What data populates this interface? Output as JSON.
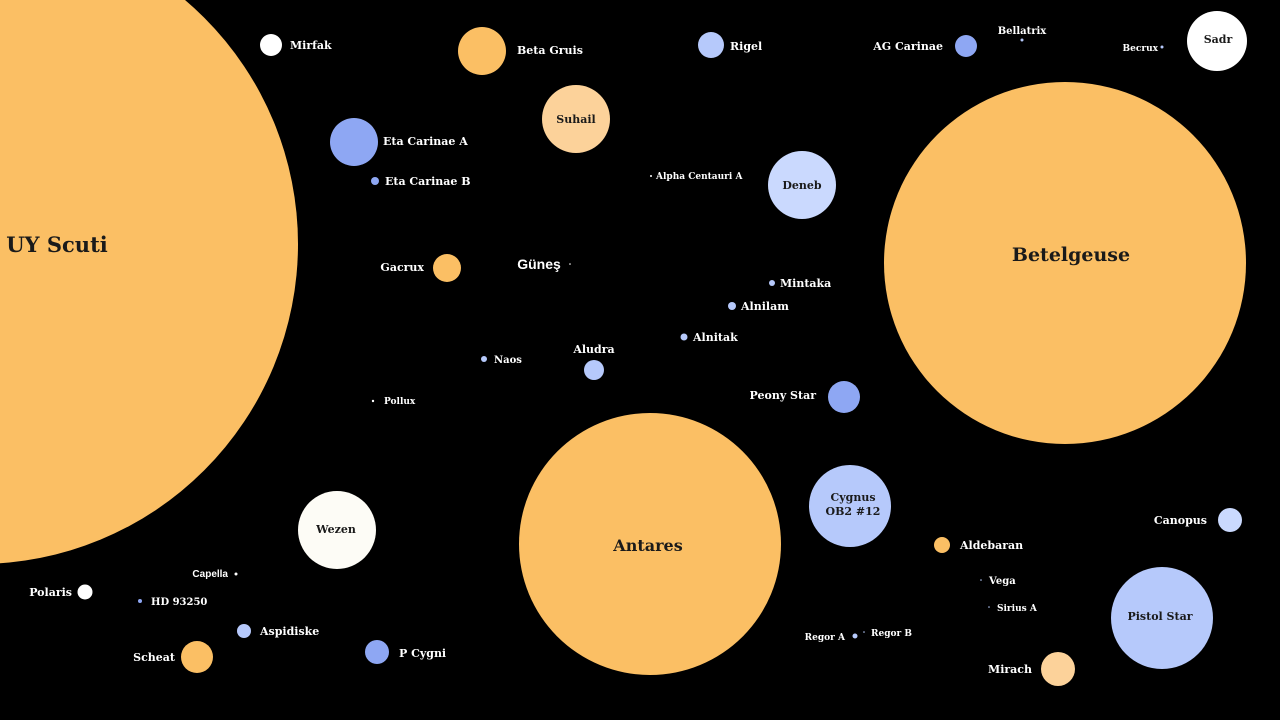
{
  "colors": {
    "background": "#000000",
    "orange": "#fbbf64",
    "light-orange": "#fcd29a",
    "blue": "#8ea7f3",
    "light-blue": "#b6c9fb",
    "pale-blue": "#cad9fe",
    "white": "#ffffff",
    "off-white": "#fdfcf6",
    "label-light": "#ffffff",
    "label-dark": "#1a1a1a"
  },
  "stars": [
    {
      "name": "UY Scuti",
      "color": "orange"
    },
    {
      "name": "Betelgeuse",
      "color": "orange"
    },
    {
      "name": "Antares",
      "color": "orange"
    },
    {
      "name": "Sadr",
      "color": "white"
    },
    {
      "name": "Bellatrix",
      "color": "light-blue"
    },
    {
      "name": "Becrux",
      "color": "light-blue"
    },
    {
      "name": "AG Carinae",
      "color": "blue"
    },
    {
      "name": "Rigel",
      "color": "light-blue"
    },
    {
      "name": "Beta Gruis",
      "color": "orange"
    },
    {
      "name": "Mirfak",
      "color": "white"
    },
    {
      "name": "Suhail",
      "color": "light-orange"
    },
    {
      "name": "Eta Carinae A",
      "color": "blue"
    },
    {
      "name": "Eta Carinae B",
      "color": "blue"
    },
    {
      "name": "Alpha Centauri A",
      "color": "white"
    },
    {
      "name": "Deneb",
      "color": "pale-blue"
    },
    {
      "name": "Gacrux",
      "color": "orange"
    },
    {
      "name": "Güneş",
      "color": "white"
    },
    {
      "name": "Mintaka",
      "color": "light-blue"
    },
    {
      "name": "Alnilam",
      "color": "light-blue"
    },
    {
      "name": "Alnitak",
      "color": "light-blue"
    },
    {
      "name": "Naos",
      "color": "light-blue"
    },
    {
      "name": "Aludra",
      "color": "light-blue"
    },
    {
      "name": "Pollux",
      "color": "white"
    },
    {
      "name": "Peony Star",
      "color": "blue"
    },
    {
      "name": "Cygnus OB2 #12",
      "color": "light-blue"
    },
    {
      "name": "Canopus",
      "color": "pale-blue"
    },
    {
      "name": "Aldebaran",
      "color": "orange"
    },
    {
      "name": "Vega",
      "color": "light-blue"
    },
    {
      "name": "Sirius A",
      "color": "light-blue"
    },
    {
      "name": "Pistol Star",
      "color": "light-blue"
    },
    {
      "name": "Regor A",
      "color": "light-blue"
    },
    {
      "name": "Regor B",
      "color": "light-blue"
    },
    {
      "name": "Mirach",
      "color": "light-orange"
    },
    {
      "name": "Wezen",
      "color": "off-white"
    },
    {
      "name": "Capella",
      "color": "white"
    },
    {
      "name": "Polaris",
      "color": "white"
    },
    {
      "name": "HD 93250",
      "color": "blue"
    },
    {
      "name": "Aspidiske",
      "color": "light-blue"
    },
    {
      "name": "Scheat",
      "color": "orange"
    },
    {
      "name": "P Cygni",
      "color": "blue"
    }
  ]
}
